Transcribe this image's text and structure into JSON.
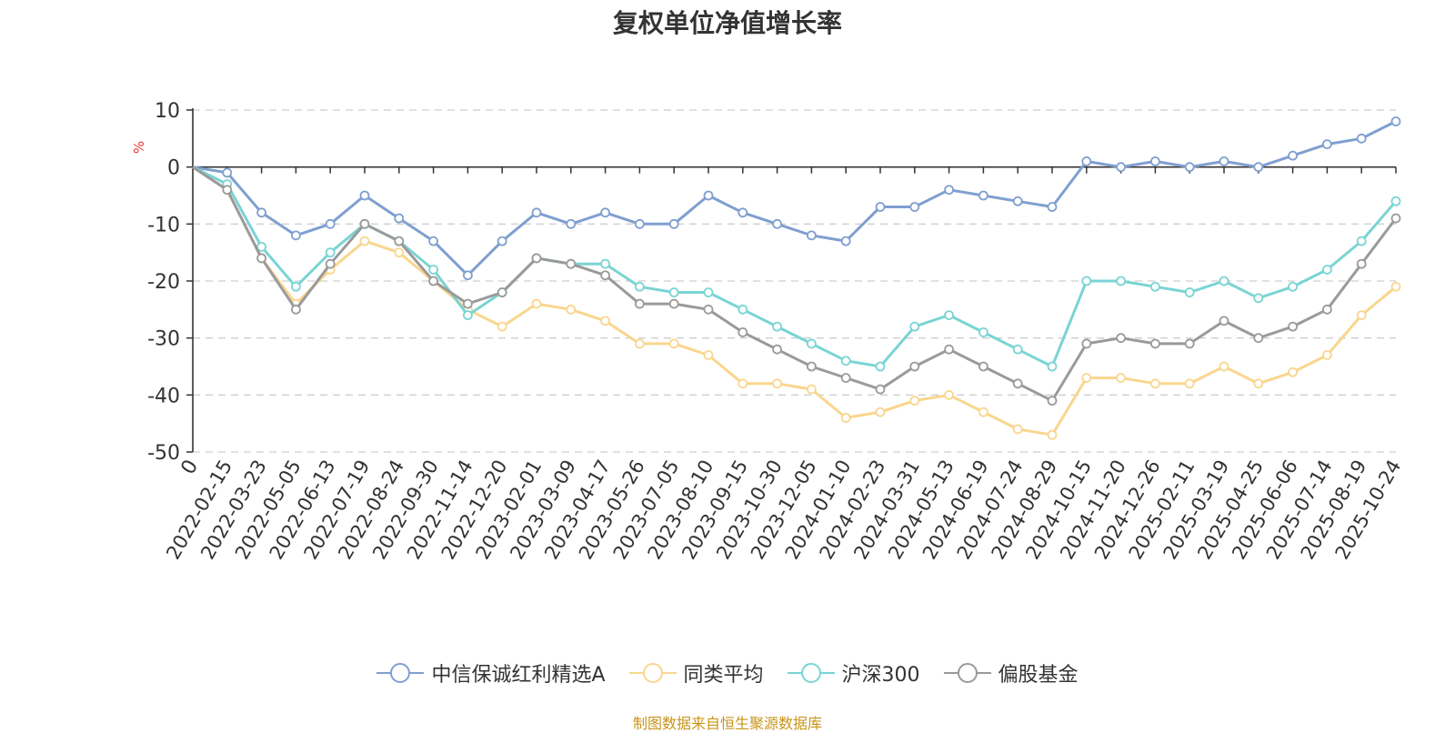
{
  "chart_data": {
    "type": "line",
    "title": "复权单位净值增长率",
    "ylabel": "%",
    "ylim": [
      -50,
      10
    ],
    "yticks": [
      10,
      0,
      -10,
      -20,
      -30,
      -40,
      -50
    ],
    "x_origin_label": "0",
    "categories": [
      "2022-02-15",
      "2022-03-23",
      "2022-05-05",
      "2022-06-13",
      "2022-07-19",
      "2022-08-24",
      "2022-09-30",
      "2022-11-14",
      "2022-12-20",
      "2023-02-01",
      "2023-03-09",
      "2023-04-17",
      "2023-05-26",
      "2023-07-05",
      "2023-08-10",
      "2023-09-15",
      "2023-10-30",
      "2023-12-05",
      "2024-01-10",
      "2024-02-23",
      "2024-03-31",
      "2024-05-13",
      "2024-06-19",
      "2024-07-24",
      "2024-08-29",
      "2024-10-15",
      "2024-11-20",
      "2024-12-26",
      "2025-02-11",
      "2025-03-19",
      "2025-04-25",
      "2025-06-06",
      "2025-07-14",
      "2025-08-19",
      "2025-10-24"
    ],
    "grid": true,
    "legend_position": "bottom",
    "series": [
      {
        "name": "中信保诚红利精选A",
        "color": "#7f9fd0",
        "values": [
          -1,
          -8,
          -12,
          -10,
          -5,
          -9,
          -13,
          -19,
          -13,
          -8,
          -10,
          -8,
          -10,
          -10,
          -5,
          -8,
          -10,
          -12,
          -13,
          -7,
          -7,
          -4,
          -5,
          -6,
          -7,
          1,
          0,
          1,
          0,
          1,
          0,
          2,
          4,
          5,
          8
        ]
      },
      {
        "name": "同类平均",
        "color": "#f9d68e",
        "values": [
          -4,
          -16,
          -24,
          -18,
          -13,
          -15,
          -20,
          -25,
          -28,
          -24,
          -25,
          -27,
          -31,
          -31,
          -33,
          -38,
          -38,
          -39,
          -44,
          -43,
          -41,
          -40,
          -43,
          -46,
          -47,
          -37,
          -37,
          -38,
          -38,
          -35,
          -38,
          -36,
          -33,
          -26,
          -21
        ]
      },
      {
        "name": "沪深300",
        "color": "#7ad4d4",
        "values": [
          -3,
          -14,
          -21,
          -15,
          -10,
          -13,
          -18,
          -26,
          -22,
          -16,
          -17,
          -17,
          -21,
          -22,
          -22,
          -25,
          -28,
          -31,
          -34,
          -35,
          -28,
          -26,
          -29,
          -32,
          -35,
          -20,
          -20,
          -21,
          -22,
          -20,
          -23,
          -21,
          -18,
          -13,
          -6
        ]
      },
      {
        "name": "偏股基金",
        "color": "#9a9a9a",
        "values": [
          -4,
          -16,
          -25,
          -17,
          -10,
          -13,
          -20,
          -24,
          -22,
          -16,
          -17,
          -19,
          -24,
          -24,
          -25,
          -29,
          -32,
          -35,
          -37,
          -39,
          -35,
          -32,
          -35,
          -38,
          -41,
          -31,
          -30,
          -31,
          -31,
          -27,
          -30,
          -28,
          -25,
          -17,
          -9
        ]
      }
    ]
  },
  "footer": {
    "source": "制图数据来自恒生聚源数据库"
  }
}
